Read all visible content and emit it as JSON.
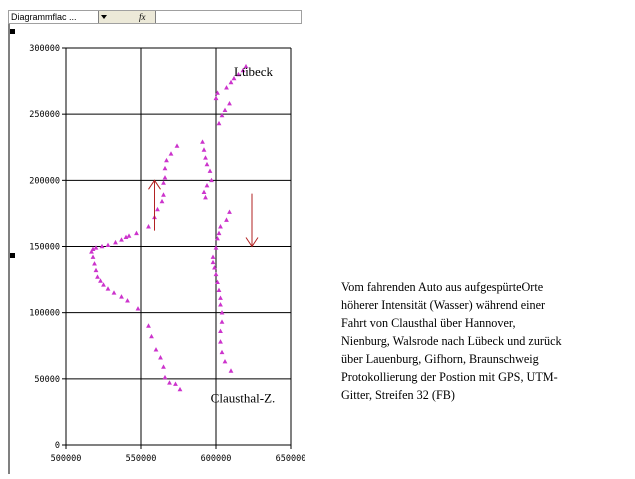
{
  "formula_bar": {
    "name_box": "Diagrammflac ...",
    "fx_label": "fx",
    "dropdown_icon": "chevron-down-icon"
  },
  "chart_data": {
    "type": "scatter",
    "xlim": [
      500000,
      650000
    ],
    "ylim": [
      0,
      300000
    ],
    "x_ticks": [
      "500000",
      "550000",
      "600000",
      "650000"
    ],
    "y_ticks": [
      "0",
      "50000",
      "100000",
      "150000",
      "200000",
      "250000",
      "300000"
    ],
    "grid": true,
    "marker_color": "#cc33cc",
    "arrow_color": "#b22222",
    "annotations": [
      {
        "text": "Lübeck",
        "x": 625000,
        "y": 279000
      },
      {
        "text": "Clausthal-Z.",
        "x": 618000,
        "y": 32000
      }
    ],
    "arrows": [
      {
        "direction": "up",
        "x": 559000,
        "y_from": 162000,
        "y_to": 200000
      },
      {
        "direction": "down",
        "x": 624000,
        "y_from": 190000,
        "y_to": 150000
      }
    ],
    "series": [
      {
        "x": [
          576000,
          573000,
          569000,
          566000,
          565000,
          563000,
          560000,
          557000,
          555000,
          548000,
          541000,
          537000,
          532000,
          528000,
          525000,
          523000,
          521000,
          520000,
          519000,
          518000,
          517000,
          518000,
          520000,
          524000,
          528000,
          533000,
          537000,
          540000,
          542000,
          547000,
          555000,
          559000,
          561000,
          564000,
          565000,
          565000,
          566000,
          566000,
          567000,
          570000,
          574000,
          591000,
          592000,
          593000,
          594000,
          596000,
          597000,
          594000,
          592000,
          593000,
          602000,
          604000,
          606000,
          609000,
          600000,
          601000,
          607000,
          610000,
          612000,
          615000,
          618000,
          620000
        ],
        "y": [
          42000,
          46000,
          47000,
          51000,
          59000,
          66000,
          72000,
          82000,
          90000,
          103000,
          109000,
          112000,
          115000,
          118000,
          121000,
          124000,
          127000,
          132000,
          137000,
          142000,
          146000,
          148000,
          149000,
          150000,
          151000,
          153000,
          155000,
          157000,
          158000,
          160000,
          165000,
          172000,
          178000,
          184000,
          189000,
          198000,
          202000,
          209000,
          215000,
          220000,
          226000,
          229000,
          223000,
          217000,
          212000,
          207000,
          200000,
          196000,
          191000,
          187000,
          243000,
          249000,
          253000,
          258000,
          262000,
          266000,
          270000,
          274000,
          277000,
          280000,
          283000,
          286000
        ]
      },
      {
        "x": [
          610000,
          606000,
          604000,
          603000,
          603000,
          604000,
          604000,
          603000,
          603000,
          602000,
          601000,
          600000,
          599000,
          598000,
          598000,
          600000,
          601000,
          602000,
          603000,
          607000,
          609000
        ],
        "y": [
          56000,
          63000,
          70000,
          78000,
          86000,
          93000,
          100000,
          106000,
          111000,
          117000,
          123000,
          129000,
          134000,
          138000,
          142000,
          149000,
          156000,
          160000,
          165000,
          170000,
          176000
        ]
      }
    ]
  },
  "caption": {
    "lines": [
      "Vom fahrenden Auto aus aufgespürteOrte",
      "höherer Intensität (Wasser) während einer",
      "Fahrt von Clausthal über Hannover,",
      "Nienburg, Walsrode nach Lübeck und zurück",
      "über Lauenburg, Gifhorn, Braunschweig",
      "Protokollierung der Postion mit GPS, UTM-",
      "Gitter, Streifen 32 (FB)"
    ]
  }
}
